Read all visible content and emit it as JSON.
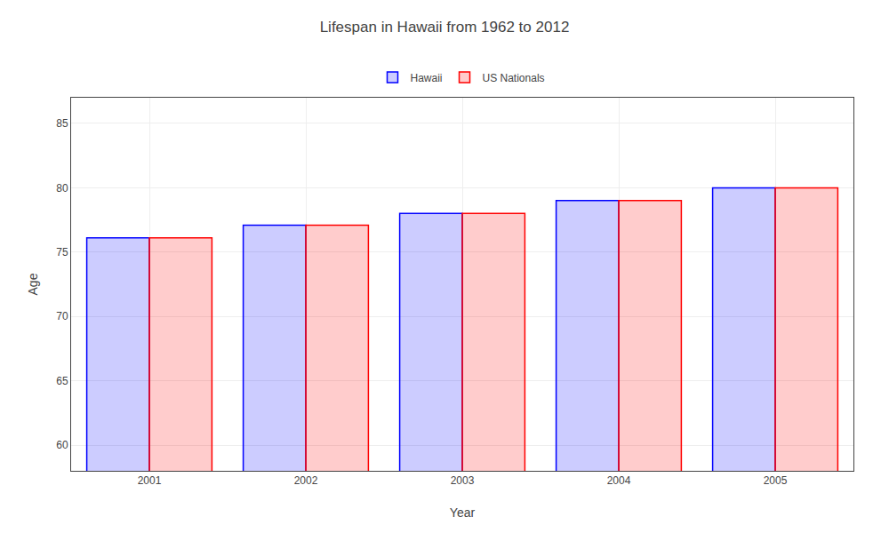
{
  "chart_data": {
    "type": "bar",
    "title": "Lifespan in Hawaii from 1962 to 2012",
    "xlabel": "Year",
    "ylabel": "Age",
    "categories": [
      "2001",
      "2002",
      "2003",
      "2004",
      "2005"
    ],
    "series": [
      {
        "name": "Hawaii",
        "color": "#0000ff",
        "values": [
          76.1,
          77.1,
          78.0,
          79.0,
          80.0
        ]
      },
      {
        "name": "US Nationals",
        "color": "#ff0000",
        "values": [
          76.1,
          77.1,
          78.0,
          79.0,
          80.0
        ]
      }
    ],
    "ylim": [
      58,
      87
    ],
    "yticks": [
      60,
      65,
      70,
      75,
      80,
      85
    ],
    "grid": true,
    "legend": "top"
  }
}
